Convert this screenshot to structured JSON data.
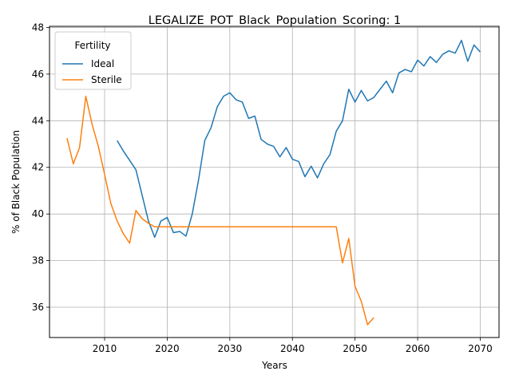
{
  "chart_data": {
    "type": "line",
    "title": "LEGALIZE_POT_Black_Population_Scoring: 1",
    "xlabel": "Years",
    "ylabel": "% of Black Population",
    "xlim": [
      2001.2,
      2073.0
    ],
    "ylim": [
      34.7,
      48.05
    ],
    "x_ticks": [
      2010,
      2020,
      2030,
      2040,
      2050,
      2060,
      2070
    ],
    "y_ticks": [
      36,
      38,
      40,
      42,
      44,
      46,
      48
    ],
    "grid": true,
    "legend": {
      "title": "Fertility",
      "placement": "top-left"
    },
    "series": [
      {
        "name": "Ideal",
        "color": "#1f77b4",
        "x": [
          2012,
          2013,
          2014,
          2015,
          2016,
          2017,
          2018,
          2019,
          2020,
          2021,
          2022,
          2023,
          2024,
          2025,
          2026,
          2027,
          2028,
          2029,
          2030,
          2031,
          2032,
          2033,
          2034,
          2035,
          2036,
          2037,
          2038,
          2039,
          2040,
          2041,
          2042,
          2043,
          2044,
          2045,
          2046,
          2047,
          2048,
          2049,
          2050,
          2051,
          2052,
          2053,
          2054,
          2055,
          2056,
          2057,
          2058,
          2059,
          2060,
          2061,
          2062,
          2063,
          2064,
          2065,
          2066,
          2067,
          2068,
          2069,
          2070
        ],
        "y": [
          43.15,
          42.7,
          42.3,
          41.9,
          40.8,
          39.7,
          39.0,
          39.7,
          39.85,
          39.2,
          39.25,
          39.05,
          40.0,
          41.45,
          43.15,
          43.7,
          44.6,
          45.05,
          45.2,
          44.9,
          44.8,
          44.1,
          44.2,
          43.2,
          43.0,
          42.9,
          42.45,
          42.85,
          42.35,
          42.25,
          41.6,
          42.05,
          41.55,
          42.15,
          42.55,
          43.55,
          44.0,
          45.35,
          44.8,
          45.3,
          44.85,
          45.0,
          45.35,
          45.7,
          45.2,
          46.05,
          46.2,
          46.1,
          46.6,
          46.35,
          46.75,
          46.5,
          46.85,
          47.0,
          46.9,
          47.45,
          46.55,
          47.25,
          46.95
        ]
      },
      {
        "name": "Sterile",
        "color": "#ff7f0e",
        "x": [
          2004,
          2005,
          2006,
          2007,
          2008,
          2009,
          2010,
          2011,
          2012,
          2013,
          2014,
          2015,
          2016,
          2017,
          2018,
          2019,
          2020,
          2021,
          2022,
          2023,
          2024,
          2025,
          2026,
          2027,
          2028,
          2029,
          2030,
          2031,
          2032,
          2033,
          2034,
          2035,
          2036,
          2037,
          2038,
          2039,
          2040,
          2041,
          2042,
          2043,
          2044,
          2045,
          2046,
          2047,
          2048,
          2049,
          2050,
          2051,
          2052,
          2053
        ],
        "y": [
          43.25,
          42.15,
          42.85,
          45.05,
          43.85,
          42.9,
          41.7,
          40.45,
          39.7,
          39.15,
          38.75,
          40.15,
          39.8,
          39.6,
          39.45,
          39.45,
          39.45,
          39.45,
          39.45,
          39.45,
          39.45,
          39.45,
          39.45,
          39.45,
          39.45,
          39.45,
          39.45,
          39.45,
          39.45,
          39.45,
          39.45,
          39.45,
          39.45,
          39.45,
          39.45,
          39.45,
          39.45,
          39.45,
          39.45,
          39.45,
          39.45,
          39.45,
          39.45,
          39.45,
          37.9,
          38.95,
          36.9,
          36.25,
          35.25,
          35.55
        ]
      }
    ]
  }
}
